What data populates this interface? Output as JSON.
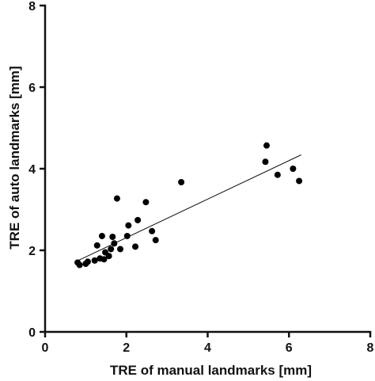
{
  "chart_data": {
    "type": "scatter",
    "xlabel": "TRE of manual landmarks [mm]",
    "ylabel": "TRE of auto landmarks [mm]",
    "xlim": [
      0,
      8
    ],
    "ylim": [
      0,
      8
    ],
    "x_ticks": [
      0,
      2,
      4,
      6,
      8
    ],
    "y_ticks": [
      0,
      2,
      4,
      6,
      8
    ],
    "grid": false,
    "points": [
      {
        "x": 0.8,
        "y": 1.7
      },
      {
        "x": 0.85,
        "y": 1.64
      },
      {
        "x": 1.0,
        "y": 1.67
      },
      {
        "x": 1.05,
        "y": 1.72
      },
      {
        "x": 1.22,
        "y": 1.75
      },
      {
        "x": 1.28,
        "y": 2.12
      },
      {
        "x": 1.35,
        "y": 1.8
      },
      {
        "x": 1.4,
        "y": 2.35
      },
      {
        "x": 1.45,
        "y": 1.78
      },
      {
        "x": 1.48,
        "y": 1.95
      },
      {
        "x": 1.57,
        "y": 1.86
      },
      {
        "x": 1.62,
        "y": 2.03
      },
      {
        "x": 1.66,
        "y": 2.33
      },
      {
        "x": 1.7,
        "y": 2.17
      },
      {
        "x": 1.77,
        "y": 3.27
      },
      {
        "x": 1.85,
        "y": 2.03
      },
      {
        "x": 2.02,
        "y": 2.35
      },
      {
        "x": 2.05,
        "y": 2.61
      },
      {
        "x": 2.22,
        "y": 2.09
      },
      {
        "x": 2.28,
        "y": 2.74
      },
      {
        "x": 2.48,
        "y": 3.18
      },
      {
        "x": 2.63,
        "y": 2.47
      },
      {
        "x": 2.72,
        "y": 2.25
      },
      {
        "x": 3.35,
        "y": 3.67
      },
      {
        "x": 5.42,
        "y": 4.17
      },
      {
        "x": 5.45,
        "y": 4.57
      },
      {
        "x": 5.72,
        "y": 3.85
      },
      {
        "x": 6.1,
        "y": 4.0
      },
      {
        "x": 6.25,
        "y": 3.7
      }
    ],
    "fit_line": {
      "x": [
        0.75,
        6.3
      ],
      "y": [
        1.72,
        4.34
      ]
    }
  }
}
